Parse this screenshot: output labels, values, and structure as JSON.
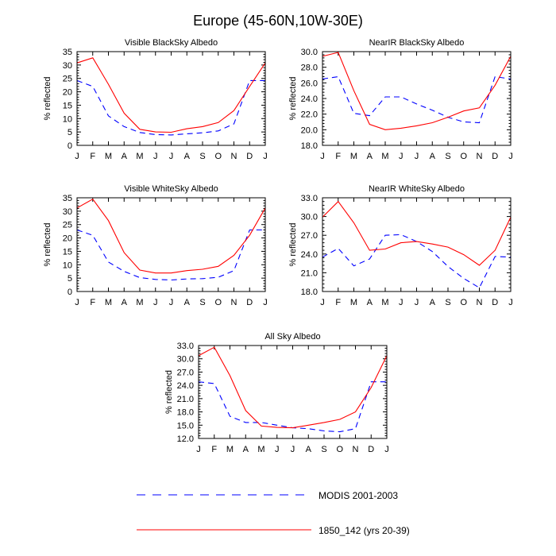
{
  "figure": {
    "title": "Europe (45-60N,10W-30E)",
    "legend": [
      {
        "label": "MODIS 2001-2003",
        "color": "#0000ff",
        "dash": true
      },
      {
        "label": "1850_142 (yrs 20-39)",
        "color": "#ff0000",
        "dash": false
      }
    ]
  },
  "chart_data": [
    {
      "type": "line",
      "title": "Visible BlackSky Albedo",
      "ylabel": "% reflected",
      "categories": [
        "J",
        "F",
        "M",
        "A",
        "M",
        "J",
        "J",
        "A",
        "S",
        "O",
        "N",
        "D",
        "J"
      ],
      "ylim": [
        0,
        35
      ],
      "yticks": [
        "0",
        "5",
        "10",
        "15",
        "20",
        "25",
        "30",
        "35"
      ],
      "series": [
        {
          "name": "MODIS 2001-2003",
          "color": "#0000ff",
          "dash": true,
          "values": [
            24.2,
            22.0,
            11.0,
            7.0,
            4.8,
            4.0,
            3.9,
            4.3,
            4.7,
            5.4,
            8.0,
            24.2,
            24.2
          ]
        },
        {
          "name": "1850_142 (yrs 20-39)",
          "color": "#ff0000",
          "dash": false,
          "values": [
            30.8,
            32.7,
            22.8,
            12.0,
            6.0,
            5.0,
            4.9,
            6.2,
            7.0,
            8.5,
            13.0,
            22.0,
            30.8
          ]
        }
      ]
    },
    {
      "type": "line",
      "title": "NearIR BlackSky Albedo",
      "ylabel": "% reflected",
      "categories": [
        "J",
        "F",
        "M",
        "A",
        "M",
        "J",
        "J",
        "A",
        "S",
        "O",
        "N",
        "D",
        "J"
      ],
      "ylim": [
        18,
        30
      ],
      "yticks": [
        "18.0",
        "20.0",
        "22.0",
        "24.0",
        "26.0",
        "28.0",
        "30.0"
      ],
      "series": [
        {
          "name": "MODIS 2001-2003",
          "color": "#0000ff",
          "dash": true,
          "values": [
            26.5,
            26.8,
            22.1,
            21.8,
            24.2,
            24.2,
            23.3,
            22.5,
            21.6,
            21.0,
            20.9,
            26.8,
            26.5
          ]
        },
        {
          "name": "1850_142 (yrs 20-39)",
          "color": "#ff0000",
          "dash": false,
          "values": [
            29.4,
            29.9,
            25.0,
            20.7,
            20.0,
            20.2,
            20.5,
            20.9,
            21.6,
            22.4,
            22.8,
            25.7,
            29.4
          ]
        }
      ]
    },
    {
      "type": "line",
      "title": "Visible WhiteSky Albedo",
      "ylabel": "% reflected",
      "categories": [
        "J",
        "F",
        "M",
        "A",
        "M",
        "J",
        "J",
        "A",
        "S",
        "O",
        "N",
        "D",
        "J"
      ],
      "ylim": [
        0,
        35
      ],
      "yticks": [
        "0",
        "5",
        "10",
        "15",
        "20",
        "25",
        "30",
        "35"
      ],
      "series": [
        {
          "name": "MODIS 2001-2003",
          "color": "#0000ff",
          "dash": true,
          "values": [
            23.0,
            21.0,
            11.0,
            7.5,
            5.2,
            4.5,
            4.3,
            4.7,
            4.8,
            5.3,
            7.8,
            23.0,
            23.0
          ]
        },
        {
          "name": "1850_142 (yrs 20-39)",
          "color": "#ff0000",
          "dash": false,
          "values": [
            31.2,
            34.5,
            26.5,
            14.5,
            8.0,
            6.9,
            6.9,
            7.8,
            8.3,
            9.4,
            13.5,
            21.0,
            31.2
          ]
        }
      ]
    },
    {
      "type": "line",
      "title": "NearIR WhiteSky Albedo",
      "ylabel": "% reflected",
      "categories": [
        "J",
        "F",
        "M",
        "A",
        "M",
        "J",
        "J",
        "A",
        "S",
        "O",
        "N",
        "D",
        "J"
      ],
      "ylim": [
        18,
        33
      ],
      "yticks": [
        "18.0",
        "21.0",
        "24.0",
        "27.0",
        "30.0",
        "33.0"
      ],
      "series": [
        {
          "name": "MODIS 2001-2003",
          "color": "#0000ff",
          "dash": true,
          "values": [
            23.5,
            24.9,
            22.1,
            23.2,
            27.0,
            27.1,
            26.0,
            24.4,
            22.0,
            20.1,
            18.6,
            23.6,
            23.5
          ]
        },
        {
          "name": "1850_142 (yrs 20-39)",
          "color": "#ff0000",
          "dash": false,
          "values": [
            29.9,
            32.4,
            29.0,
            24.6,
            24.8,
            25.8,
            26.0,
            25.6,
            25.1,
            23.9,
            22.2,
            24.6,
            29.9
          ]
        }
      ]
    },
    {
      "type": "line",
      "title": "All Sky Albedo",
      "ylabel": "% reflected",
      "categories": [
        "J",
        "F",
        "M",
        "A",
        "M",
        "J",
        "J",
        "A",
        "S",
        "O",
        "N",
        "D",
        "J"
      ],
      "ylim": [
        12,
        33
      ],
      "yticks": [
        "12.0",
        "15.0",
        "18.0",
        "21.0",
        "24.0",
        "27.0",
        "30.0",
        "33.0"
      ],
      "series": [
        {
          "name": "MODIS 2001-2003",
          "color": "#0000ff",
          "dash": true,
          "values": [
            24.8,
            24.4,
            17.0,
            15.6,
            15.6,
            15.0,
            14.4,
            14.2,
            13.7,
            13.5,
            14.2,
            24.8,
            24.8
          ]
        },
        {
          "name": "1850_142 (yrs 20-39)",
          "color": "#ff0000",
          "dash": false,
          "values": [
            30.7,
            32.6,
            26.2,
            18.3,
            14.8,
            14.5,
            14.4,
            15.0,
            15.6,
            16.3,
            18.0,
            23.5,
            30.7
          ]
        }
      ]
    }
  ]
}
